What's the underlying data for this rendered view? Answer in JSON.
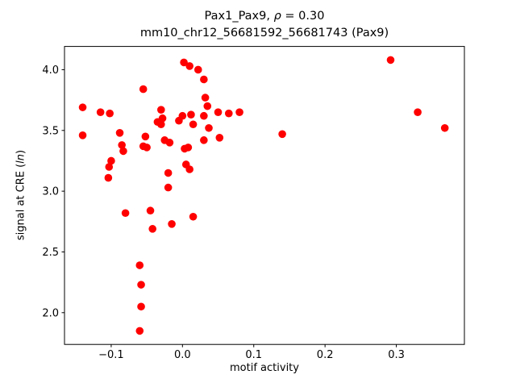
{
  "figure": {
    "title_pre": "Pax1_Pax9, ",
    "title_rho": "ρ",
    "title_post": " = 0.30",
    "subtitle": "mm10_chr12_56681592_56681743 (Pax9)",
    "xlabel": "motif activity",
    "ylabel_pre": "signal at CRE (",
    "ylabel_italic": "ln",
    "ylabel_post": ")"
  },
  "chart_data": {
    "type": "scatter",
    "title": "Pax1_Pax9, ρ = 0.30",
    "subtitle": "mm10_chr12_56681592_56681743 (Pax9)",
    "xlabel": "motif activity",
    "ylabel": "signal at CRE (ln)",
    "marker_color": "#ff0000",
    "background_color": "#ffffff",
    "grid": false,
    "xlim": [
      -0.1655,
      0.3955
    ],
    "ylim": [
      1.7385,
      4.1915
    ],
    "xticks": [
      -0.1,
      0.0,
      0.1,
      0.2,
      0.3
    ],
    "yticks": [
      2.0,
      2.5,
      3.0,
      3.5,
      4.0
    ],
    "points": [
      [
        -0.14,
        3.69
      ],
      [
        -0.14,
        3.46
      ],
      [
        -0.115,
        3.65
      ],
      [
        -0.102,
        3.64
      ],
      [
        -0.1,
        3.25
      ],
      [
        -0.103,
        3.2
      ],
      [
        -0.104,
        3.11
      ],
      [
        -0.088,
        3.48
      ],
      [
        -0.085,
        3.38
      ],
      [
        -0.083,
        3.33
      ],
      [
        -0.08,
        2.82
      ],
      [
        -0.055,
        3.84
      ],
      [
        -0.052,
        3.45
      ],
      [
        -0.055,
        3.37
      ],
      [
        -0.05,
        3.36
      ],
      [
        -0.06,
        2.39
      ],
      [
        -0.058,
        2.23
      ],
      [
        -0.058,
        2.05
      ],
      [
        -0.06,
        1.85
      ],
      [
        -0.045,
        2.84
      ],
      [
        -0.042,
        2.69
      ],
      [
        -0.03,
        3.67
      ],
      [
        -0.028,
        3.6
      ],
      [
        -0.035,
        3.57
      ],
      [
        -0.03,
        3.55
      ],
      [
        -0.025,
        3.42
      ],
      [
        -0.018,
        3.4
      ],
      [
        -0.02,
        3.15
      ],
      [
        -0.02,
        3.03
      ],
      [
        -0.015,
        2.73
      ],
      [
        -0.005,
        3.58
      ],
      [
        0.002,
        4.06
      ],
      [
        0.01,
        4.03
      ],
      [
        0.0,
        3.62
      ],
      [
        0.012,
        3.63
      ],
      [
        0.015,
        3.55
      ],
      [
        0.008,
        3.36
      ],
      [
        0.003,
        3.35
      ],
      [
        0.005,
        3.22
      ],
      [
        0.01,
        3.18
      ],
      [
        0.015,
        2.79
      ],
      [
        0.022,
        4.0
      ],
      [
        0.03,
        3.92
      ],
      [
        0.032,
        3.77
      ],
      [
        0.035,
        3.7
      ],
      [
        0.03,
        3.62
      ],
      [
        0.037,
        3.52
      ],
      [
        0.03,
        3.42
      ],
      [
        0.05,
        3.65
      ],
      [
        0.052,
        3.44
      ],
      [
        0.065,
        3.64
      ],
      [
        0.08,
        3.65
      ],
      [
        0.14,
        3.47
      ],
      [
        0.292,
        4.08
      ],
      [
        0.33,
        3.65
      ],
      [
        0.368,
        3.52
      ]
    ]
  }
}
